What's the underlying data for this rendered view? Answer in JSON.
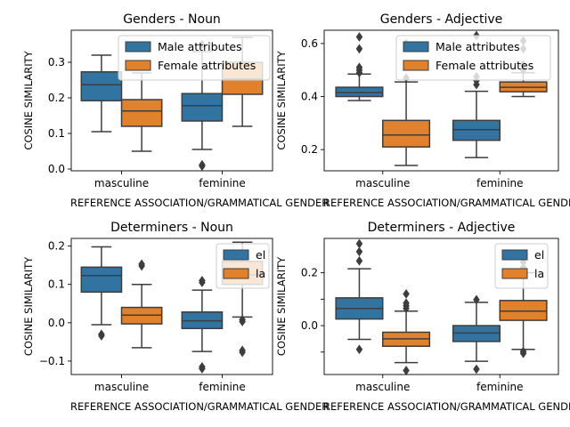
{
  "colors": {
    "male": "#3274a1",
    "female": "#e1812c",
    "stroke": "#3d3d3d"
  },
  "chart_data": [
    {
      "type": "box",
      "title": "Genders - Noun",
      "xlabel": "REFERENCE ASSOCIATION/GRAMMATICAL GENDER",
      "ylabel": "COSINE SIMILARITY",
      "categories": [
        "masculine",
        "feminine"
      ],
      "ylim": [
        -0.005,
        0.39
      ],
      "yticks": [
        0.0,
        0.1,
        0.2,
        0.3
      ],
      "ytick_labels": [
        "0.0",
        "0.1",
        "0.2",
        "0.3"
      ],
      "legend": {
        "entries": [
          "Male attributes",
          "Female attributes"
        ],
        "position": "top-right"
      },
      "series": [
        {
          "name": "Male attributes",
          "color": "#3274a1",
          "boxes": [
            {
              "category": "masculine",
              "whisker_low": 0.105,
              "q1": 0.192,
              "median": 0.237,
              "q3": 0.273,
              "whisker_high": 0.32,
              "outliers": []
            },
            {
              "category": "feminine",
              "whisker_low": 0.055,
              "q1": 0.135,
              "median": 0.178,
              "q3": 0.212,
              "whisker_high": 0.33,
              "outliers": [
                0.008,
                0.012,
                0.35
              ]
            }
          ]
        },
        {
          "name": "Female attributes",
          "color": "#e1812c",
          "boxes": [
            {
              "category": "masculine",
              "whisker_low": 0.05,
              "q1": 0.12,
              "median": 0.163,
              "q3": 0.195,
              "whisker_high": 0.27,
              "outliers": []
            },
            {
              "category": "feminine",
              "whisker_low": 0.12,
              "q1": 0.21,
              "median": 0.253,
              "q3": 0.3,
              "whisker_high": 0.37,
              "outliers": []
            }
          ]
        }
      ]
    },
    {
      "type": "box",
      "title": "Genders - Adjective",
      "xlabel": "REFERENCE ASSOCIATION/GRAMMATICAL GENDER",
      "ylabel": "COSINE SIMILARITY",
      "categories": [
        "masculine",
        "feminine"
      ],
      "ylim": [
        0.12,
        0.65
      ],
      "yticks": [
        0.2,
        0.4,
        0.6
      ],
      "ytick_labels": [
        "0.2",
        "0.4",
        "0.6"
      ],
      "legend": {
        "entries": [
          "Male attributes",
          "Female attributes"
        ],
        "position": "top-right"
      },
      "series": [
        {
          "name": "Male attributes",
          "color": "#3274a1",
          "boxes": [
            {
              "category": "masculine",
              "whisker_low": 0.385,
              "q1": 0.4,
              "median": 0.415,
              "q3": 0.435,
              "whisker_high": 0.485,
              "outliers": [
                0.49,
                0.5,
                0.51,
                0.58,
                0.625
              ]
            },
            {
              "category": "feminine",
              "whisker_low": 0.17,
              "q1": 0.235,
              "median": 0.275,
              "q3": 0.31,
              "whisker_high": 0.42,
              "outliers": [
                0.445,
                0.46,
                0.475,
                0.63
              ]
            }
          ]
        },
        {
          "name": "Female attributes",
          "color": "#e1812c",
          "boxes": [
            {
              "category": "masculine",
              "whisker_low": 0.14,
              "q1": 0.21,
              "median": 0.255,
              "q3": 0.31,
              "whisker_high": 0.455,
              "outliers": [
                0.47,
                0.6
              ]
            },
            {
              "category": "feminine",
              "whisker_low": 0.4,
              "q1": 0.418,
              "median": 0.435,
              "q3": 0.455,
              "whisker_high": 0.49,
              "outliers": [
                0.5,
                0.52,
                0.58,
                0.61
              ]
            }
          ]
        }
      ]
    },
    {
      "type": "box",
      "title": "Determiners - Noun",
      "xlabel": "REFERENCE ASSOCIATION/GRAMMATICAL GENDER",
      "ylabel": "COSINE SIMILARITY",
      "categories": [
        "masculine",
        "feminine"
      ],
      "ylim": [
        -0.135,
        0.22
      ],
      "yticks": [
        -0.1,
        0.0,
        0.1,
        0.2
      ],
      "ytick_labels": [
        "−0.1",
        "0.0",
        "0.1",
        "0.2"
      ],
      "legend": {
        "entries": [
          "el",
          "la"
        ],
        "position": "top-right"
      },
      "series": [
        {
          "name": "el",
          "color": "#3274a1",
          "boxes": [
            {
              "category": "masculine",
              "whisker_low": -0.005,
              "q1": 0.08,
              "median": 0.123,
              "q3": 0.145,
              "whisker_high": 0.198,
              "outliers": [
                -0.03,
                -0.034
              ]
            },
            {
              "category": "feminine",
              "whisker_low": -0.075,
              "q1": -0.015,
              "median": 0.005,
              "q3": 0.028,
              "whisker_high": 0.085,
              "outliers": [
                0.105,
                0.11,
                -0.115,
                -0.12
              ]
            }
          ]
        },
        {
          "name": "la",
          "color": "#e1812c",
          "boxes": [
            {
              "category": "masculine",
              "whisker_low": -0.065,
              "q1": -0.003,
              "median": 0.02,
              "q3": 0.04,
              "whisker_high": 0.1,
              "outliers": [
                0.148,
                0.153
              ]
            },
            {
              "category": "feminine",
              "whisker_low": 0.015,
              "q1": 0.1,
              "median": 0.125,
              "q3": 0.16,
              "whisker_high": 0.21,
              "outliers": [
                0.003,
                0.008,
                -0.072,
                -0.077
              ]
            }
          ]
        }
      ]
    },
    {
      "type": "box",
      "title": "Determiners - Adjective",
      "xlabel": "REFERENCE ASSOCIATION/GRAMMATICAL GENDER",
      "ylabel": "COSINE SIMILARITY",
      "categories": [
        "masculine",
        "feminine"
      ],
      "ylim": [
        -0.185,
        0.33
      ],
      "yticks": [
        -0.1,
        0.0,
        0.1,
        0.2
      ],
      "ytick_labels": [
        "",
        "0.0",
        "",
        "0.2"
      ],
      "legend": {
        "entries": [
          "el",
          "la"
        ],
        "position": "top-right"
      },
      "series": [
        {
          "name": "el",
          "color": "#3274a1",
          "boxes": [
            {
              "category": "masculine",
              "whisker_low": -0.052,
              "q1": 0.025,
              "median": 0.065,
              "q3": 0.105,
              "whisker_high": 0.215,
              "outliers": [
                0.245,
                0.28,
                0.31,
                -0.09
              ]
            },
            {
              "category": "feminine",
              "whisker_low": -0.135,
              "q1": -0.06,
              "median": -0.028,
              "q3": 0.0,
              "whisker_high": 0.088,
              "outliers": [
                0.098,
                -0.165
              ]
            }
          ]
        },
        {
          "name": "la",
          "color": "#e1812c",
          "boxes": [
            {
              "category": "masculine",
              "whisker_low": -0.14,
              "q1": -0.078,
              "median": -0.05,
              "q3": -0.025,
              "whisker_high": 0.055,
              "outliers": [
                0.065,
                0.075,
                0.085,
                0.12,
                -0.17
              ]
            },
            {
              "category": "feminine",
              "whisker_low": -0.09,
              "q1": 0.02,
              "median": 0.055,
              "q3": 0.095,
              "whisker_high": 0.2,
              "outliers": [
                0.22,
                0.24,
                0.27,
                -0.098,
                -0.105
              ]
            }
          ]
        }
      ]
    }
  ]
}
